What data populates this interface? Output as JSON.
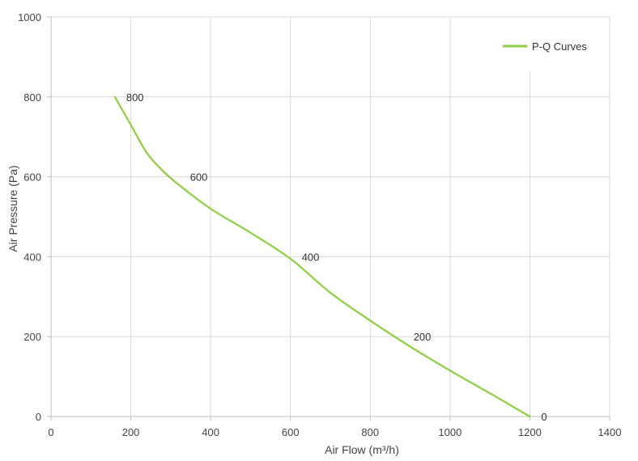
{
  "chart_data": {
    "type": "line",
    "xlabel": "Air Flow  (m³/h)",
    "ylabel": "Air Pressure  (Pa)",
    "xlim": [
      0,
      1400
    ],
    "ylim": [
      0,
      1000
    ],
    "x_ticks": [
      0,
      200,
      400,
      600,
      800,
      1000,
      1200,
      1400
    ],
    "y_ticks": [
      0,
      200,
      400,
      600,
      800,
      1000
    ],
    "grid": true,
    "legend": {
      "position": "top-right"
    },
    "series": [
      {
        "name": "P-Q Curves",
        "color": "#8dcf3f",
        "x": [
          160,
          200,
          240,
          280,
          320,
          400,
          500,
          600,
          700,
          800,
          900,
          1000,
          1100,
          1200
        ],
        "y": [
          800,
          730,
          660,
          615,
          580,
          520,
          460,
          395,
          310,
          240,
          175,
          115,
          58,
          0
        ]
      }
    ],
    "point_labels": [
      {
        "x": 160,
        "y": 800,
        "text": "800"
      },
      {
        "x": 320,
        "y": 600,
        "text": "600"
      },
      {
        "x": 600,
        "y": 400,
        "text": "400"
      },
      {
        "x": 880,
        "y": 200,
        "text": "200"
      },
      {
        "x": 1200,
        "y": 0,
        "text": "0"
      }
    ]
  }
}
